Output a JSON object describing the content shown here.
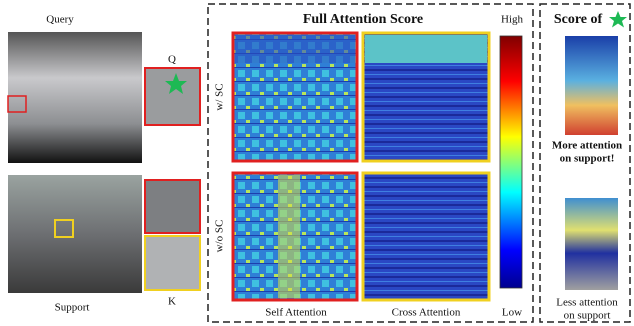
{
  "query": {
    "label": "Query",
    "zoom_label": "Q"
  },
  "support": {
    "label": "Support",
    "zoom_label": "K"
  },
  "attention": {
    "title": "Full Attention Score",
    "rows": [
      "w/ SC",
      "w/o SC"
    ],
    "columns": [
      "Self Attention",
      "Cross Attention"
    ],
    "colorbar": {
      "high": "High",
      "low": "Low"
    }
  },
  "score": {
    "title": "Score of",
    "captions": [
      [
        "More attention",
        "on support!"
      ],
      [
        "Less attention",
        "on support"
      ]
    ]
  }
}
